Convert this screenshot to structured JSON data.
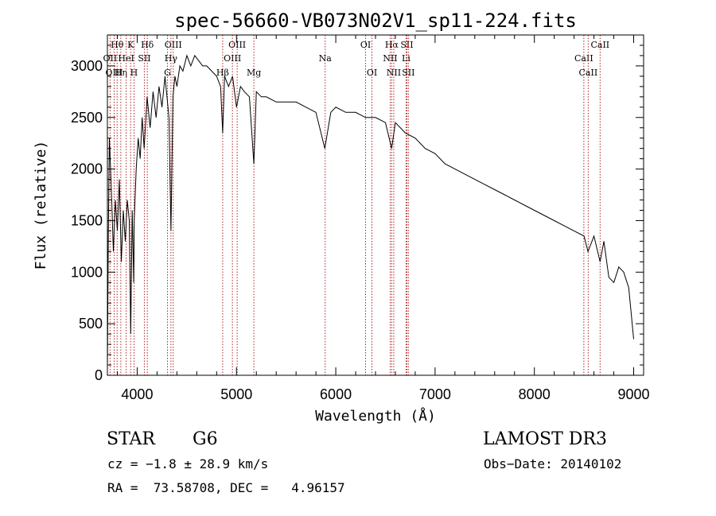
{
  "chart_data": {
    "type": "line",
    "title": "spec-56660-VB073N02V1_sp11-224.fits",
    "xlabel": "Wavelength (Å)",
    "ylabel": "Flux (relative)",
    "xlim": [
      3700,
      9100
    ],
    "ylim": [
      0,
      3300
    ],
    "grid": false,
    "legend": "none",
    "xticks": [
      4000,
      5000,
      6000,
      7000,
      8000,
      9000
    ],
    "xtick_labels": [
      "4000",
      "5000",
      "6000",
      "7000",
      "8000",
      "9000"
    ],
    "yticks": [
      0,
      500,
      1000,
      1500,
      2000,
      2500,
      3000
    ],
    "ytick_labels": [
      "0",
      "500",
      "1000",
      "1500",
      "2000",
      "2500",
      "3000"
    ],
    "series": [
      {
        "name": "flux",
        "x": [
          3700,
          3710,
          3720,
          3740,
          3760,
          3780,
          3800,
          3820,
          3840,
          3860,
          3880,
          3900,
          3920,
          3935,
          3950,
          3965,
          3970,
          3990,
          4010,
          4030,
          4050,
          4070,
          4100,
          4130,
          4160,
          4190,
          4220,
          4250,
          4280,
          4300,
          4320,
          4340,
          4360,
          4380,
          4400,
          4430,
          4460,
          4500,
          4540,
          4580,
          4620,
          4660,
          4700,
          4750,
          4800,
          4840,
          4861,
          4880,
          4920,
          4960,
          5000,
          5040,
          5080,
          5130,
          5175,
          5200,
          5250,
          5300,
          5400,
          5500,
          5600,
          5700,
          5800,
          5890,
          5950,
          6000,
          6100,
          6200,
          6300,
          6400,
          6500,
          6563,
          6600,
          6700,
          6800,
          6900,
          7000,
          7100,
          7200,
          7300,
          7400,
          7500,
          7600,
          7700,
          7800,
          7900,
          8000,
          8100,
          8200,
          8300,
          8400,
          8500,
          8540,
          8600,
          8662,
          8700,
          8750,
          8800,
          8850,
          8900,
          8950,
          9000
        ],
        "y": [
          50,
          1400,
          2300,
          1800,
          1200,
          1700,
          1400,
          1900,
          1100,
          1600,
          1300,
          1700,
          1500,
          400,
          1600,
          900,
          1500,
          2000,
          2300,
          2100,
          2500,
          2200,
          2700,
          2400,
          2750,
          2500,
          2800,
          2600,
          2900,
          2700,
          2500,
          1400,
          2700,
          2900,
          2800,
          3000,
          2950,
          3100,
          3000,
          3100,
          3050,
          3000,
          3000,
          2950,
          2900,
          2800,
          2350,
          2900,
          2800,
          2900,
          2600,
          2800,
          2750,
          2700,
          2050,
          2750,
          2700,
          2700,
          2650,
          2650,
          2650,
          2600,
          2550,
          2200,
          2550,
          2600,
          2550,
          2550,
          2500,
          2500,
          2450,
          2200,
          2450,
          2350,
          2300,
          2200,
          2150,
          2050,
          2000,
          1950,
          1900,
          1850,
          1800,
          1750,
          1700,
          1650,
          1600,
          1550,
          1500,
          1450,
          1400,
          1350,
          1200,
          1350,
          1100,
          1300,
          950,
          900,
          1050,
          1000,
          850,
          350
        ]
      }
    ],
    "lines": [
      {
        "name": "H-theta",
        "wavelength": 3798,
        "label": "Hθ",
        "tier": 0
      },
      {
        "name": "OII-3727",
        "wavelength": 3727,
        "label": "OII",
        "tier": 1
      },
      {
        "name": "OIII-3768",
        "wavelength": 3768,
        "label": "OIII",
        "tier": 2
      },
      {
        "name": "H-eta",
        "wavelength": 3835,
        "label": "Hη",
        "tier": 2
      },
      {
        "name": "CaII-K",
        "wavelength": 3934,
        "label": "K",
        "tier": 0
      },
      {
        "name": "HeI",
        "wavelength": 3889,
        "label": "HeI",
        "tier": 1
      },
      {
        "name": "CaII-H",
        "wavelength": 3968,
        "label": "H",
        "tier": 2
      },
      {
        "name": "H-delta",
        "wavelength": 4102,
        "label": "Hδ",
        "tier": 0
      },
      {
        "name": "SII-4072",
        "wavelength": 4072,
        "label": "SII",
        "tier": 1
      },
      {
        "name": "OIII-4363",
        "wavelength": 4363,
        "label": "OIII",
        "tier": 0
      },
      {
        "name": "H-gamma",
        "wavelength": 4340,
        "label": "Hγ",
        "tier": 1
      },
      {
        "name": "G-band",
        "wavelength": 4305,
        "label": "G",
        "tier": 2
      },
      {
        "name": "OIII-5007",
        "wavelength": 5007,
        "label": "OIII",
        "tier": 0
      },
      {
        "name": "OIII-4959",
        "wavelength": 4959,
        "label": "OIII",
        "tier": 1
      },
      {
        "name": "H-beta",
        "wavelength": 4861,
        "label": "Hβ",
        "tier": 2
      },
      {
        "name": "Mg",
        "wavelength": 5175,
        "label": "Mg",
        "tier": 2
      },
      {
        "name": "Na",
        "wavelength": 5893,
        "label": "Na",
        "tier": 1
      },
      {
        "name": "OI-6300",
        "wavelength": 6300,
        "label": "OI",
        "tier": 0
      },
      {
        "name": "OI-6364",
        "wavelength": 6364,
        "label": "OI",
        "tier": 2
      },
      {
        "name": "H-alpha",
        "wavelength": 6563,
        "label": "Hα",
        "tier": 0
      },
      {
        "name": "SII-6716",
        "wavelength": 6716,
        "label": "SII",
        "tier": 0
      },
      {
        "name": "NII-6548",
        "wavelength": 6548,
        "label": "NII",
        "tier": 1
      },
      {
        "name": "Li",
        "wavelength": 6708,
        "label": "Li",
        "tier": 1
      },
      {
        "name": "NII-6584",
        "wavelength": 6584,
        "label": "NII",
        "tier": 2
      },
      {
        "name": "SII-6731",
        "wavelength": 6731,
        "label": "SII",
        "tier": 2
      },
      {
        "name": "CaII-8662",
        "wavelength": 8662,
        "label": "CaII",
        "tier": 0
      },
      {
        "name": "CaII-8498",
        "wavelength": 8498,
        "label": "CaII",
        "tier": 1
      },
      {
        "name": "CaII-8542",
        "wavelength": 8542,
        "label": "CaII",
        "tier": 2
      }
    ]
  },
  "info": {
    "object_class": "STAR",
    "subclass": "G6",
    "survey": "LAMOST DR3",
    "redshift_text": "cz = −1.8 ± 28.9 km/s",
    "obs_date_text": "Obs−Date: 20140102",
    "coords_text": "RA =  73.58708, DEC =   4.96157"
  },
  "colors": {
    "spectrum": "#000000",
    "line_marker": "#b22222"
  }
}
